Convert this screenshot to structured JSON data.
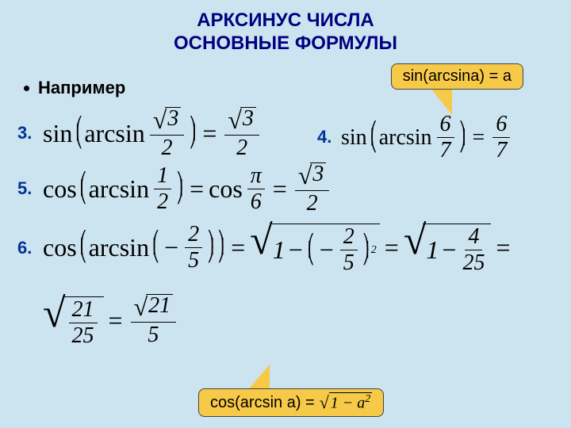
{
  "title_line1": "АРКСИНУС ЧИСЛА",
  "title_line2": "ОСНОВНЫЕ ФОРМУЛЫ",
  "subtitle": "Например",
  "callout1": "sin(arcsina) = a",
  "callout2_text": "cos(arcsin a) =",
  "callout2_expr_a": "a",
  "callout2_expr_sup": "2",
  "callout2_expr_one": "1",
  "labels": {
    "n3": "3.",
    "n4": "4.",
    "n5": "5.",
    "n6": "6."
  },
  "f3": {
    "sin": "sin",
    "arcsin": "arcsin",
    "sqrt3": "3",
    "den2a": "2",
    "sqrt3b": "3",
    "den2b": "2"
  },
  "f4": {
    "sin": "sin",
    "arcsin": "arcsin",
    "num6a": "6",
    "den7a": "7",
    "num6b": "6",
    "den7b": "7"
  },
  "f5": {
    "cos": "cos",
    "arcsin": "arcsin",
    "num1": "1",
    "den2": "2",
    "cos2": "cos",
    "pi": "π",
    "den6": "6",
    "sqrt3": "3",
    "den2b": "2"
  },
  "f6": {
    "cos": "cos",
    "arcsin": "arcsin",
    "num2": "2",
    "den5": "5",
    "one": "1",
    "num2b": "2",
    "den5b": "5",
    "sup2": "2",
    "oneb": "1",
    "num4": "4",
    "den25": "25"
  },
  "f6b": {
    "num21": "21",
    "den25": "25",
    "sqrt21": "21",
    "den5": "5"
  },
  "colors": {
    "background": "#cce4f0",
    "title": "#000080",
    "numbers": "#003399",
    "callout_bg": "#f7c948"
  }
}
